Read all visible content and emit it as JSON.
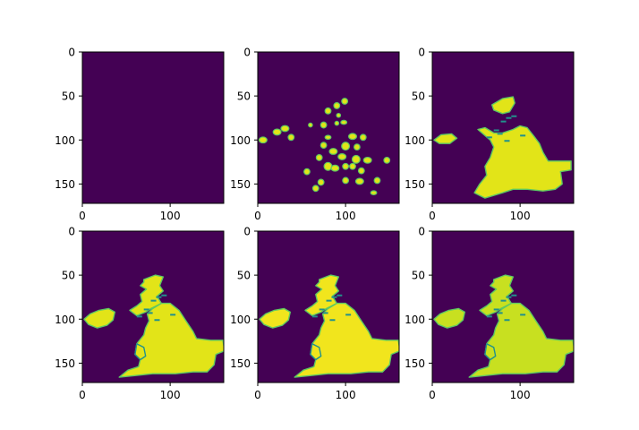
{
  "colors": {
    "background": "#440154",
    "land_fill": "#e2e418",
    "land_light": "#f1e51d",
    "land_mid": "#c8e020",
    "edge_teal": "#21918c",
    "edge_green": "#5ec962",
    "axes_frame": "#000000"
  },
  "chart_data": [
    {
      "type": "heatmap",
      "panel": "row1-col1",
      "image_rows": 172,
      "image_cols": 161,
      "xlim": [
        0,
        161
      ],
      "ylim": [
        172,
        0
      ],
      "x_ticks": [
        0,
        100
      ],
      "y_ticks": [
        0,
        50,
        100,
        150
      ],
      "x_tick_labels": [
        "0",
        "100"
      ],
      "y_tick_labels": [
        "0",
        "50",
        "100",
        "150"
      ],
      "stage": "empty",
      "colormap": "viridis"
    },
    {
      "type": "heatmap",
      "panel": "row1-col2",
      "image_rows": 172,
      "image_cols": 161,
      "xlim": [
        0,
        161
      ],
      "ylim": [
        172,
        0
      ],
      "x_ticks": [
        0,
        100
      ],
      "y_ticks": [
        0,
        50,
        100,
        150
      ],
      "x_tick_labels": [
        "0",
        "100"
      ],
      "y_tick_labels": [
        "0",
        "50",
        "100",
        "150"
      ],
      "stage": "seeds",
      "colormap": "viridis"
    },
    {
      "type": "heatmap",
      "panel": "row1-col3",
      "image_rows": 172,
      "image_cols": 161,
      "xlim": [
        0,
        161
      ],
      "ylim": [
        172,
        0
      ],
      "x_ticks": [
        0,
        100
      ],
      "y_ticks": [
        0,
        50,
        100,
        150
      ],
      "x_tick_labels": [
        "0",
        "100"
      ],
      "y_tick_labels": [
        "0",
        "50",
        "100",
        "150"
      ],
      "stage": "growing",
      "colormap": "viridis"
    },
    {
      "type": "heatmap",
      "panel": "row2-col1",
      "image_rows": 172,
      "image_cols": 161,
      "xlim": [
        0,
        161
      ],
      "ylim": [
        172,
        0
      ],
      "x_ticks": [
        0,
        100
      ],
      "y_ticks": [
        0,
        50,
        100,
        150
      ],
      "x_tick_labels": [
        "0",
        "100"
      ],
      "y_tick_labels": [
        "0",
        "50",
        "100",
        "150"
      ],
      "stage": "full",
      "colormap": "viridis"
    },
    {
      "type": "heatmap",
      "panel": "row2-col2",
      "image_rows": 172,
      "image_cols": 161,
      "xlim": [
        0,
        161
      ],
      "ylim": [
        172,
        0
      ],
      "x_ticks": [
        0,
        100
      ],
      "y_ticks": [
        0,
        50,
        100,
        150
      ],
      "x_tick_labels": [
        "0",
        "100"
      ],
      "y_tick_labels": [
        "0",
        "50",
        "100",
        "150"
      ],
      "stage": "full",
      "colormap": "viridis"
    },
    {
      "type": "heatmap",
      "panel": "row2-col3",
      "image_rows": 172,
      "image_cols": 161,
      "xlim": [
        0,
        161
      ],
      "ylim": [
        172,
        0
      ],
      "x_ticks": [
        0,
        100
      ],
      "y_ticks": [
        0,
        50,
        100,
        150
      ],
      "x_tick_labels": [
        "0",
        "100"
      ],
      "y_tick_labels": [
        "0",
        "50",
        "100",
        "150"
      ],
      "stage": "full",
      "colormap": "viridis"
    }
  ]
}
